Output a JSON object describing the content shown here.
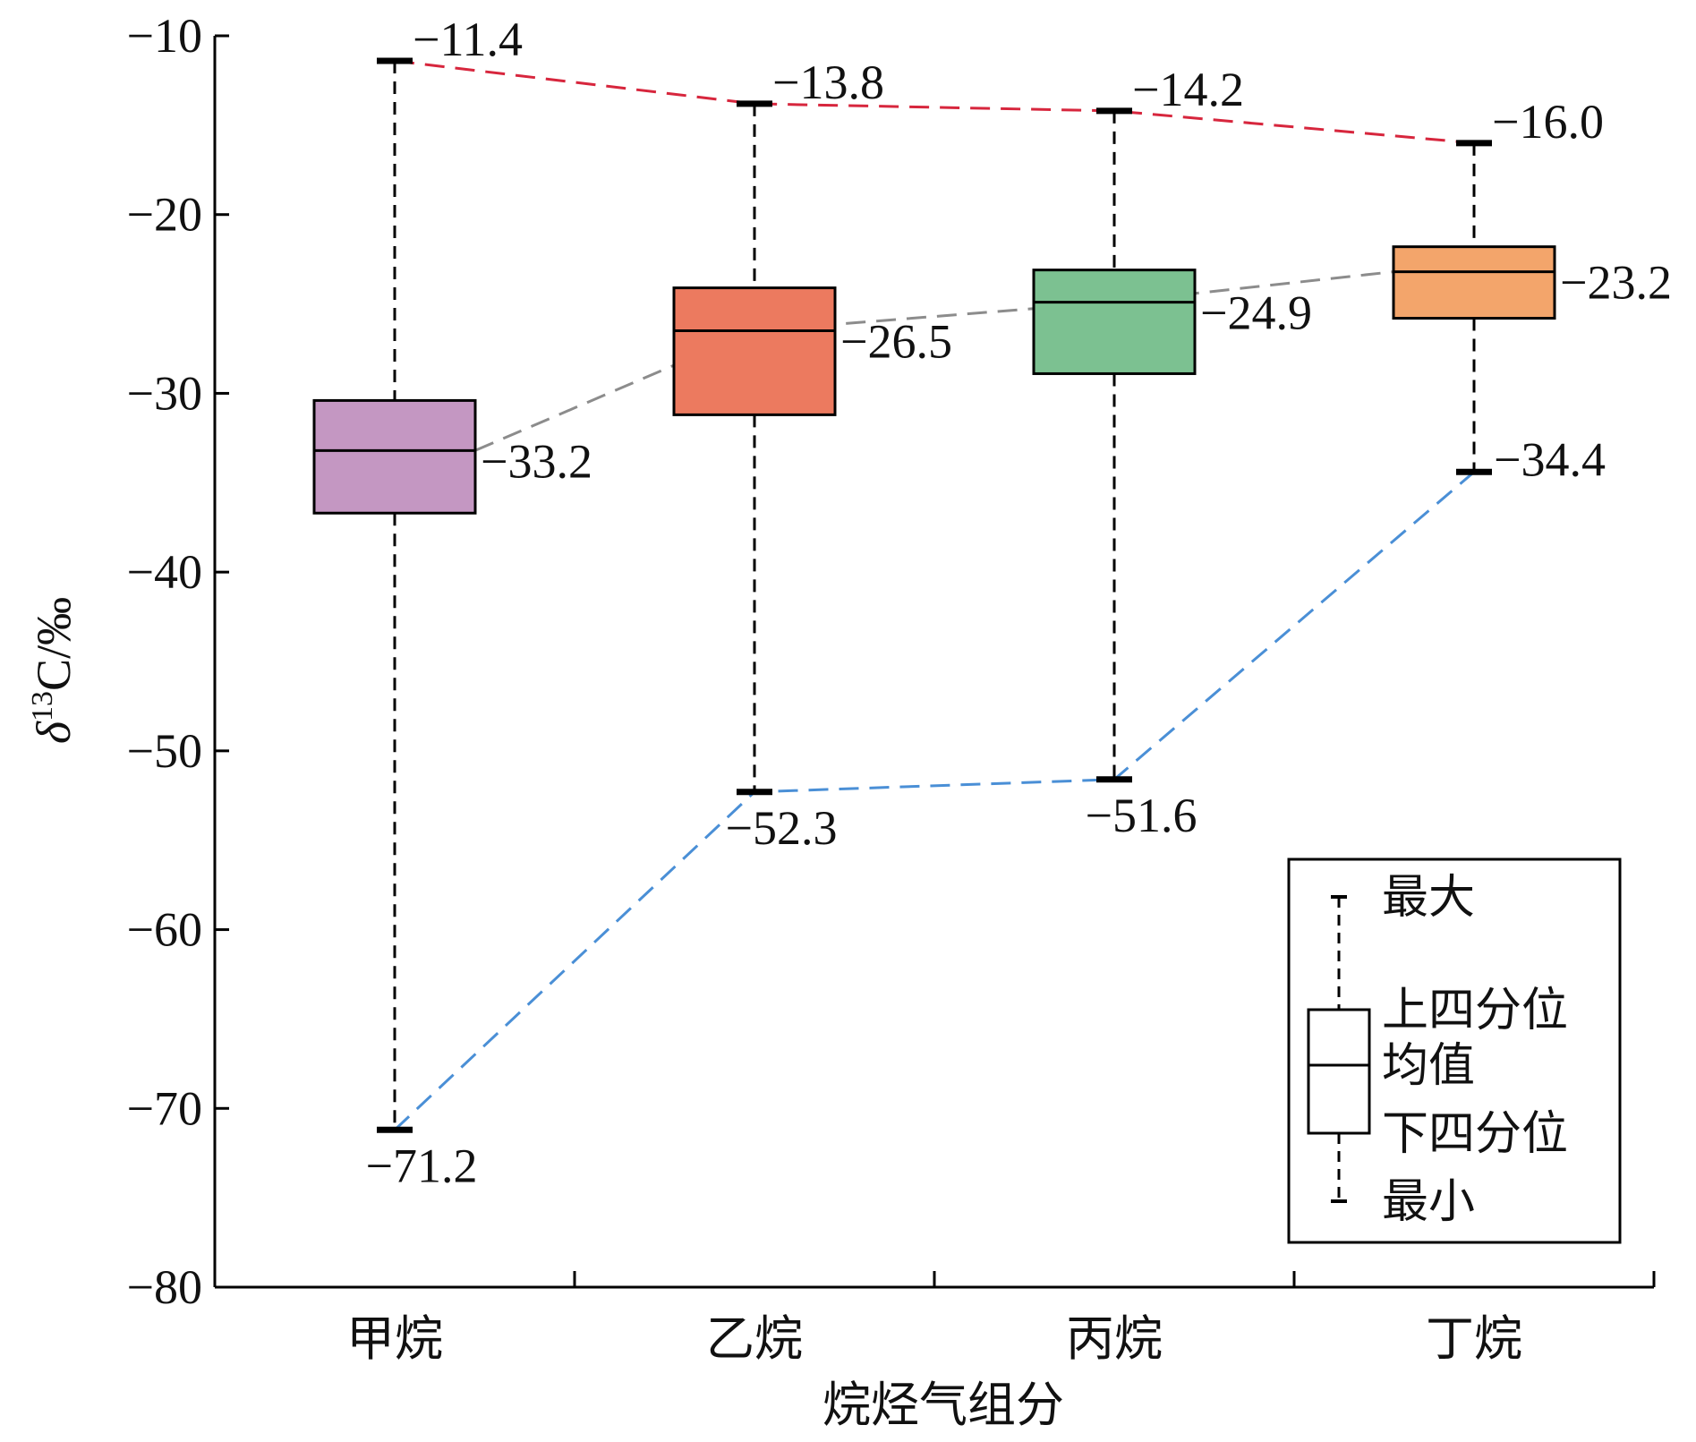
{
  "chart_data": {
    "type": "box",
    "title": "",
    "xlabel": "烷烃气组分",
    "ylabel": "δ13C/‰",
    "ylabel_parts": {
      "symbol": "δ",
      "superscript": "13",
      "rest": "C/‰"
    },
    "ylim": [
      -80,
      -10
    ],
    "yticks": [
      -10,
      -20,
      -30,
      -40,
      -50,
      -60,
      -70,
      -80
    ],
    "ytick_labels": [
      "−10",
      "−20",
      "−30",
      "−40",
      "−50",
      "−60",
      "−70",
      "−80"
    ],
    "categories": [
      "甲烷",
      "乙烷",
      "丙烷",
      "丁烷"
    ],
    "boxes": [
      {
        "category": "甲烷",
        "max": -11.4,
        "q3": -30.4,
        "mean": -33.2,
        "q1": -36.7,
        "min": -71.2,
        "max_label": "−11.4",
        "mean_label": "−33.2",
        "min_label": "−71.2",
        "color": "#c497c2"
      },
      {
        "category": "乙烷",
        "max": -13.8,
        "q3": -24.1,
        "mean": -26.5,
        "q1": -31.2,
        "min": -52.3,
        "max_label": "−13.8",
        "mean_label": "−26.5",
        "min_label": "−52.3",
        "color": "#ec7a5f"
      },
      {
        "category": "丙烷",
        "max": -14.2,
        "q3": -23.1,
        "mean": -24.9,
        "q1": -28.9,
        "min": -51.6,
        "max_label": "−14.2",
        "mean_label": "−24.9",
        "min_label": "−51.6",
        "color": "#7cc191"
      },
      {
        "category": "丁烷",
        "max": -16.0,
        "q3": -21.8,
        "mean": -23.2,
        "q1": -25.8,
        "min": -34.4,
        "max_label": "−16.0",
        "mean_label": "−23.2",
        "min_label": "−34.4",
        "color": "#f3a56b"
      }
    ],
    "trend_lines": [
      {
        "connects": "max",
        "color": "#d7263d"
      },
      {
        "connects": "mean",
        "color": "#8c8c8c"
      },
      {
        "connects": "min",
        "color": "#4a8fd6"
      }
    ],
    "legend": {
      "placement": "bottom-right",
      "items": [
        "最大",
        "上四分位",
        "均值",
        "下四分位",
        "最小"
      ]
    },
    "grid": false
  }
}
